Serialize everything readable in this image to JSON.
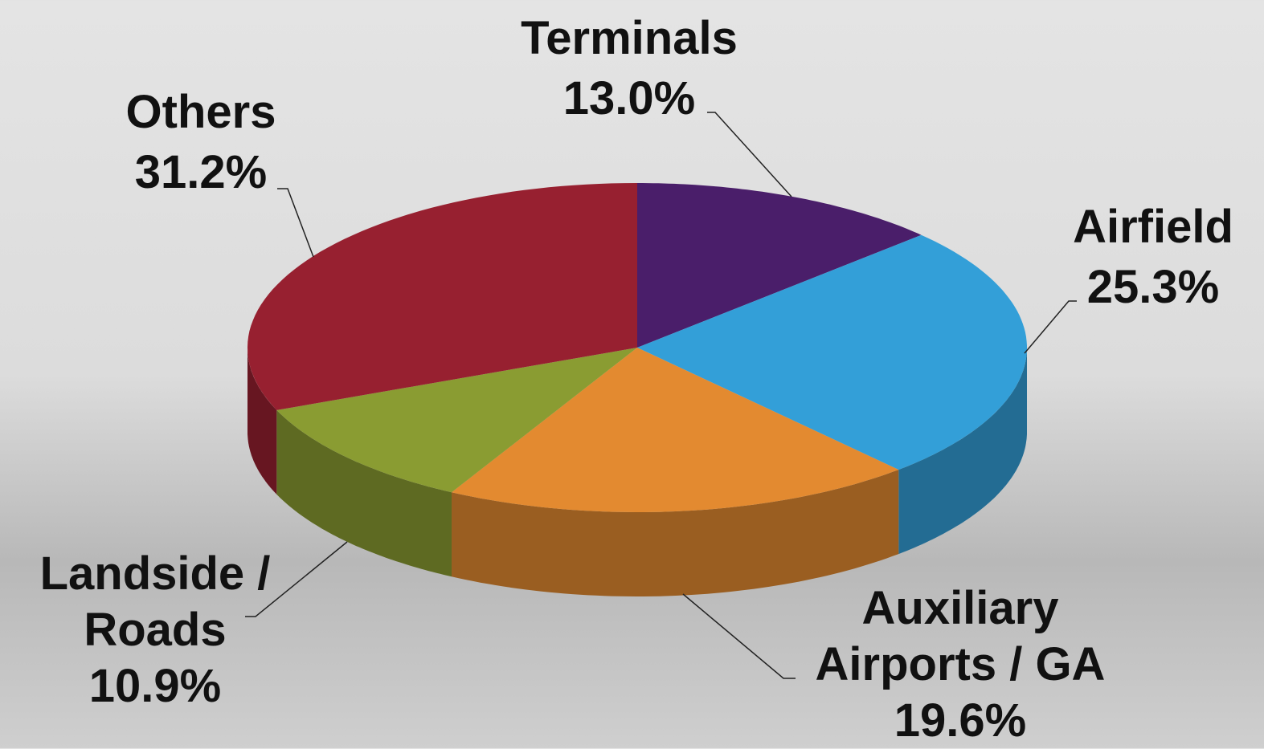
{
  "chart_data": {
    "type": "pie",
    "categories": [
      "Terminals",
      "Airfield",
      "Auxiliary Airports / GA",
      "Landside / Roads",
      "Others"
    ],
    "values": [
      13.0,
      25.3,
      19.6,
      10.9,
      31.2
    ],
    "value_labels": [
      "13.0%",
      "25.3%",
      "19.6%",
      "10.9%",
      "31.2%"
    ],
    "colors": [
      "#4a1e6a",
      "#339fd8",
      "#e38a30",
      "#8a9c32",
      "#972030"
    ]
  }
}
